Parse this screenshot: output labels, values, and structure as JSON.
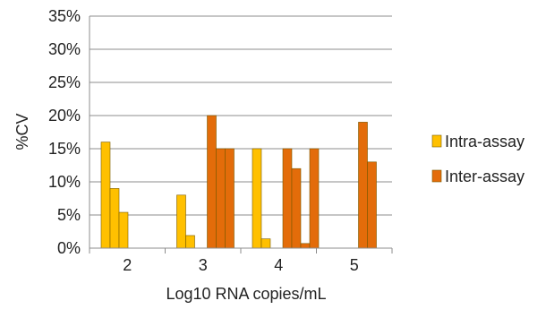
{
  "chart_data": {
    "type": "bar",
    "title": "",
    "xlabel": "Log10 RNA copies/mL",
    "ylabel": "%CV",
    "ylim": [
      0,
      35
    ],
    "ytick_labels": [
      "0%",
      "5%",
      "10%",
      "15%",
      "20%",
      "25%",
      "30%",
      "35%"
    ],
    "grid": "horizontal",
    "legend_position": "right",
    "categories": [
      "2",
      "3",
      "4",
      "5"
    ],
    "series": [
      {
        "name": "Intra-assay",
        "color": "#FFC000",
        "groups": [
          [
            16,
            9,
            5.4
          ],
          [
            8,
            1.9
          ],
          [
            15,
            1.4
          ],
          []
        ]
      },
      {
        "name": "Inter-assay",
        "color": "#E36C0A",
        "groups": [
          [],
          [
            20,
            15,
            15
          ],
          [
            15,
            12,
            0.7,
            15
          ],
          [
            19,
            13
          ]
        ]
      }
    ]
  }
}
